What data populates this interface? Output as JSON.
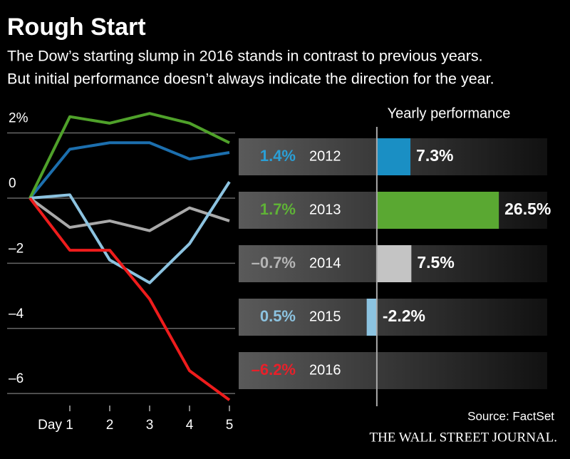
{
  "header": {
    "title": "Rough Start",
    "subtitle": [
      "The Dow’s starting slump in 2016 stands in contrast to previous years.",
      "But initial performance doesn’t always indicate the direction for the year."
    ]
  },
  "chart_data": [
    {
      "type": "line",
      "x": [
        0,
        1,
        2,
        3,
        4,
        5
      ],
      "xlim": [
        0,
        5
      ],
      "xticks": [
        {
          "value": 1,
          "label": "Day 1"
        },
        2,
        3,
        4,
        5
      ],
      "ylim": [
        -6.5,
        2.8
      ],
      "yticks": [
        {
          "value": 2,
          "label": "2%"
        },
        0,
        {
          "value": -2,
          "label": "–2"
        },
        {
          "value": -4,
          "label": "–4"
        },
        {
          "value": -6,
          "label": "–6"
        }
      ],
      "grid": true,
      "series": [
        {
          "name": "2012",
          "color": "#1c6fae",
          "values": [
            0,
            1.5,
            1.7,
            1.7,
            1.2,
            1.4
          ]
        },
        {
          "name": "2013",
          "color": "#4fa12a",
          "values": [
            0,
            2.5,
            2.3,
            2.6,
            2.3,
            1.7
          ]
        },
        {
          "name": "2014",
          "color": "#a9a9a9",
          "values": [
            0,
            -0.9,
            -0.7,
            -1.0,
            -0.3,
            -0.7
          ]
        },
        {
          "name": "2015",
          "color": "#8cc3e0",
          "values": [
            0,
            0.1,
            -1.9,
            -2.6,
            -1.4,
            0.5
          ]
        },
        {
          "name": "2016",
          "color": "#ee1c1c",
          "values": [
            0,
            -1.6,
            -1.6,
            -3.1,
            -5.3,
            -6.2
          ]
        }
      ]
    },
    {
      "type": "hbar",
      "title": "Yearly performance",
      "categories": [
        "2012",
        "2013",
        "2014",
        "2015",
        "2016"
      ],
      "values": [
        7.3,
        26.5,
        7.5,
        -2.2,
        null
      ],
      "value_labels": [
        "7.3%",
        "26.5%",
        "7.5%",
        "-2.2%",
        null
      ],
      "start_values": [
        1.4,
        1.7,
        -0.7,
        0.5,
        -6.2
      ],
      "start_labels": [
        "1.4%",
        "1.7%",
        "–0.7%",
        "0.5%",
        "–6.2%"
      ],
      "colors": [
        "#1a8fc4",
        "#5aa832",
        "#c4c4c4",
        "#8cc3e0",
        "#e8202a"
      ],
      "label_color": [
        "#2a9fd6",
        "#5fb336",
        "#b5b5b5",
        "#8cc3e0",
        "#e8202a"
      ],
      "xlim": [
        -30,
        37
      ]
    }
  ],
  "source": "Source: FactSet",
  "publisher": "THE WALL STREET JOURNAL."
}
